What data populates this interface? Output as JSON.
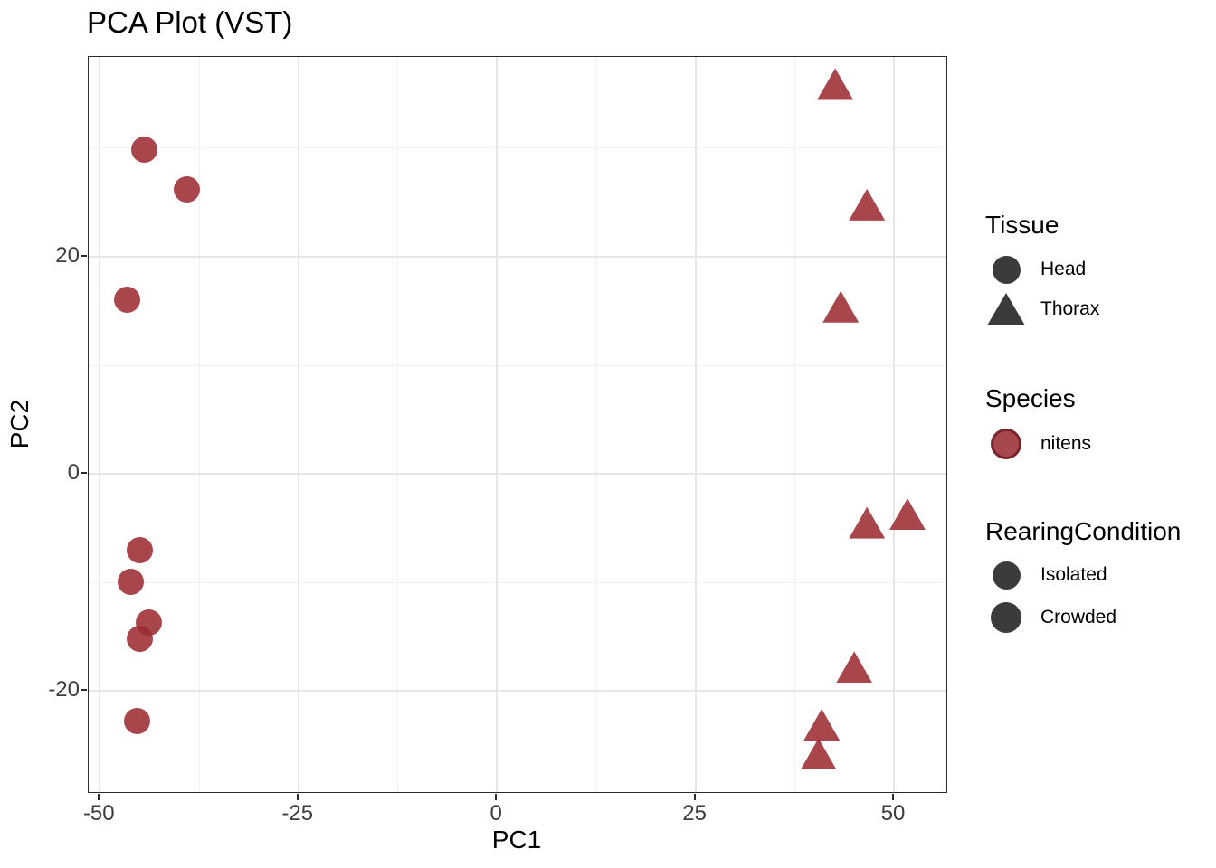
{
  "title": "PCA Plot (VST)",
  "chart_data": {
    "type": "scatter",
    "title": "PCA Plot (VST)",
    "xlabel": "PC1",
    "ylabel": "PC2",
    "xlim": [
      -51.4,
      56.6
    ],
    "ylim": [
      -29.3,
      38.4
    ],
    "grid": true,
    "x_ticks": {
      "values": [
        -50,
        -25,
        0,
        25,
        50
      ],
      "labels": [
        "-50",
        "-25",
        "0",
        "25",
        "50"
      ]
    },
    "y_ticks": {
      "values": [
        20,
        0,
        -20
      ],
      "labels": [
        "20",
        "0",
        "-20"
      ]
    },
    "x_minor": [
      -37.5,
      -12.5,
      12.5,
      37.5
    ],
    "y_minor": [
      -30,
      -10,
      10,
      30
    ],
    "point_color": "#9b2b31",
    "point_opacity": 0.87,
    "series": [
      {
        "name": "Head",
        "shape": "circle",
        "points": [
          [
            -44.4,
            29.9
          ],
          [
            -39.0,
            26.2
          ],
          [
            -46.6,
            16.0
          ],
          [
            -45.0,
            -7.0
          ],
          [
            -46.1,
            -9.9
          ],
          [
            -43.8,
            -13.7
          ],
          [
            -45.0,
            -15.2
          ],
          [
            -45.3,
            -22.8
          ]
        ]
      },
      {
        "name": "Thorax",
        "shape": "triangle",
        "points": [
          [
            42.6,
            35.9
          ],
          [
            46.6,
            24.8
          ],
          [
            43.3,
            15.4
          ],
          [
            46.6,
            -4.5
          ],
          [
            51.7,
            -3.7
          ],
          [
            45.0,
            -17.8
          ],
          [
            40.9,
            -23.1
          ],
          [
            40.5,
            -25.8
          ]
        ]
      }
    ]
  },
  "legend": {
    "groups": [
      {
        "title": "Tissue",
        "entries": [
          {
            "label": "Head",
            "shape": "circle",
            "color": "#3b3b3b"
          },
          {
            "label": "Thorax",
            "shape": "triangle",
            "color": "#3b3b3b"
          }
        ]
      },
      {
        "title": "Species",
        "entries": [
          {
            "label": "nitens",
            "shape": "circle",
            "color": "#a6484d",
            "border": "#7a262b"
          }
        ]
      },
      {
        "title": "RearingCondition",
        "entries": [
          {
            "label": "Isolated",
            "shape": "circle",
            "color": "#3b3b3b"
          },
          {
            "label": "Crowded",
            "shape": "circle",
            "color": "#3b3b3b"
          }
        ]
      }
    ]
  }
}
